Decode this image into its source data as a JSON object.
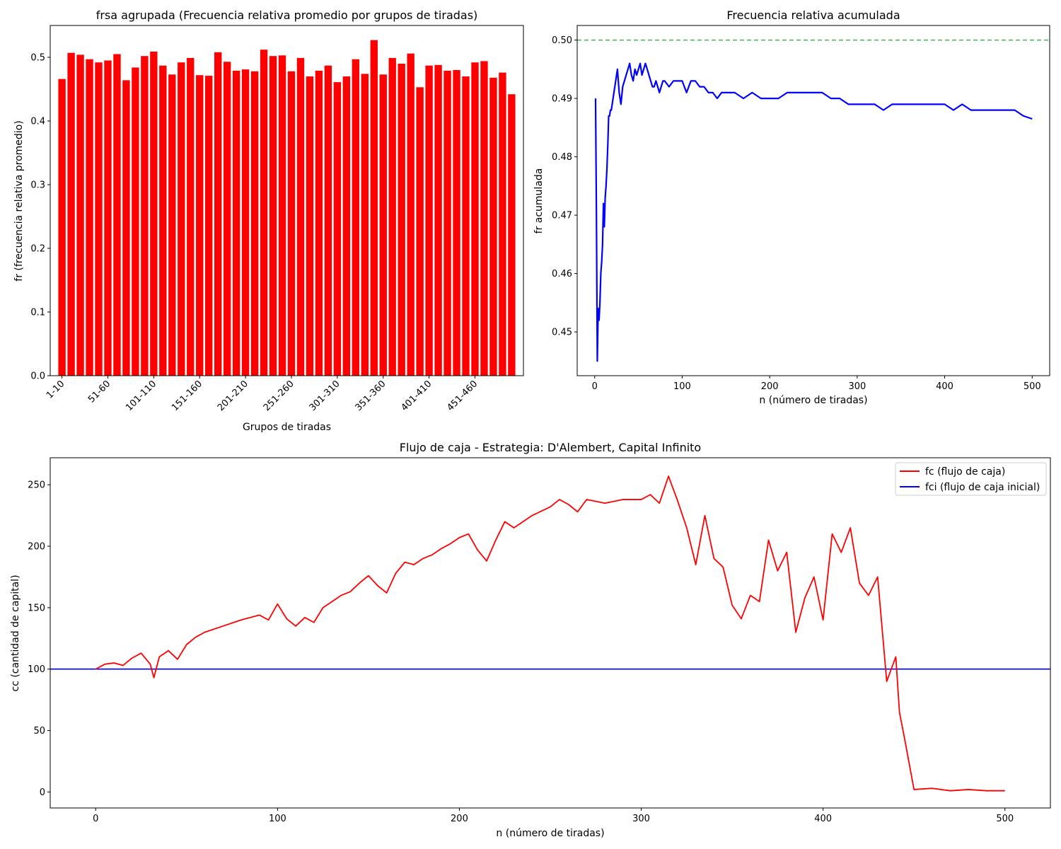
{
  "chart_data": [
    {
      "type": "bar",
      "title": "frsa agrupada (Frecuencia relativa promedio por grupos de tiradas)",
      "xlabel": "Grupos de tiradas",
      "ylabel": "fr (frecuencia relativa promedio)",
      "ylim": [
        0,
        0.55
      ],
      "yticks": [
        "0.0",
        "0.1",
        "0.2",
        "0.3",
        "0.4",
        "0.5"
      ],
      "tick_labels": [
        "1-10",
        "51-60",
        "101-110",
        "151-160",
        "201-210",
        "251-260",
        "301-310",
        "351-360",
        "401-410",
        "451-460"
      ],
      "tick_indices": [
        0,
        5,
        10,
        15,
        20,
        25,
        30,
        35,
        40,
        45
      ],
      "bar_color": "#ff0000",
      "categories": [
        "1-10",
        "11-20",
        "21-30",
        "31-40",
        "41-50",
        "51-60",
        "61-70",
        "71-80",
        "81-90",
        "91-100",
        "101-110",
        "111-120",
        "121-130",
        "131-140",
        "141-150",
        "151-160",
        "161-170",
        "171-180",
        "181-190",
        "191-200",
        "201-210",
        "211-220",
        "221-230",
        "231-240",
        "241-250",
        "251-260",
        "261-270",
        "271-280",
        "281-290",
        "291-300",
        "301-310",
        "311-320",
        "321-330",
        "331-340",
        "341-350",
        "351-360",
        "361-370",
        "371-380",
        "381-390",
        "391-400",
        "401-410",
        "411-420",
        "421-430",
        "431-440",
        "441-450",
        "451-460",
        "461-470",
        "471-480",
        "481-490",
        "491-500"
      ],
      "values": [
        0.466,
        0.507,
        0.504,
        0.497,
        0.492,
        0.495,
        0.505,
        0.464,
        0.484,
        0.502,
        0.509,
        0.487,
        0.473,
        0.492,
        0.499,
        0.472,
        0.471,
        0.508,
        0.493,
        0.479,
        0.481,
        0.478,
        0.512,
        0.502,
        0.503,
        0.478,
        0.499,
        0.47,
        0.479,
        0.487,
        0.461,
        0.47,
        0.497,
        0.474,
        0.527,
        0.473,
        0.499,
        0.49,
        0.506,
        0.453,
        0.487,
        0.488,
        0.479,
        0.48,
        0.47,
        0.492,
        0.494,
        0.468,
        0.476,
        0.442
      ]
    },
    {
      "type": "line",
      "title": "Frecuencia relativa acumulada",
      "xlabel": "n (número de tiradas)",
      "ylabel": "fr acumulada",
      "xlim": [
        -20,
        520
      ],
      "ylim": [
        0.4425,
        0.5025
      ],
      "xticks": [
        "0",
        "100",
        "200",
        "300",
        "400",
        "500"
      ],
      "yticks": [
        "0.45",
        "0.46",
        "0.47",
        "0.48",
        "0.49",
        "0.50"
      ],
      "reference_line": {
        "y": 0.5,
        "color": "#4caf50",
        "style": "dashed"
      },
      "series": [
        {
          "color": "#0000ff",
          "x": [
            1,
            2,
            3,
            4,
            5,
            6,
            7,
            8,
            9,
            10,
            11,
            12,
            13,
            14,
            15,
            16,
            17,
            18,
            19,
            20,
            22,
            24,
            26,
            28,
            30,
            32,
            34,
            36,
            38,
            40,
            42,
            44,
            46,
            48,
            50,
            52,
            54,
            56,
            58,
            60,
            62,
            64,
            66,
            68,
            70,
            72,
            74,
            76,
            78,
            80,
            85,
            90,
            95,
            100,
            105,
            110,
            115,
            120,
            125,
            130,
            135,
            140,
            145,
            150,
            160,
            170,
            180,
            190,
            200,
            210,
            220,
            230,
            240,
            250,
            260,
            270,
            280,
            290,
            300,
            310,
            320,
            330,
            340,
            350,
            360,
            370,
            380,
            390,
            400,
            410,
            420,
            430,
            440,
            450,
            460,
            470,
            480,
            490,
            500
          ],
          "y": [
            0.49,
            0.47,
            0.445,
            0.454,
            0.452,
            0.455,
            0.46,
            0.462,
            0.465,
            0.472,
            0.468,
            0.473,
            0.475,
            0.478,
            0.482,
            0.487,
            0.487,
            0.488,
            0.488,
            0.489,
            0.491,
            0.493,
            0.495,
            0.491,
            0.489,
            0.492,
            0.493,
            0.494,
            0.495,
            0.496,
            0.494,
            0.493,
            0.495,
            0.494,
            0.495,
            0.496,
            0.494,
            0.495,
            0.496,
            0.495,
            0.494,
            0.493,
            0.492,
            0.492,
            0.493,
            0.492,
            0.491,
            0.492,
            0.493,
            0.493,
            0.492,
            0.493,
            0.493,
            0.493,
            0.491,
            0.493,
            0.493,
            0.492,
            0.492,
            0.491,
            0.491,
            0.49,
            0.491,
            0.491,
            0.491,
            0.49,
            0.491,
            0.49,
            0.49,
            0.49,
            0.491,
            0.491,
            0.491,
            0.491,
            0.491,
            0.49,
            0.49,
            0.489,
            0.489,
            0.489,
            0.489,
            0.488,
            0.489,
            0.489,
            0.489,
            0.489,
            0.489,
            0.489,
            0.489,
            0.488,
            0.489,
            0.488,
            0.488,
            0.488,
            0.488,
            0.488,
            0.488,
            0.487,
            0.4865
          ]
        }
      ]
    },
    {
      "type": "line",
      "title": "Flujo de caja - Estrategia: D'Alembert, Capital Infinito",
      "xlabel": "n (número de tiradas)",
      "ylabel": "cc (cantidad de capital)",
      "xlim": [
        -25,
        525
      ],
      "ylim": [
        -13,
        272
      ],
      "xticks": [
        "0",
        "100",
        "200",
        "300",
        "400",
        "500"
      ],
      "yticks": [
        "0",
        "50",
        "100",
        "150",
        "200",
        "250"
      ],
      "legend_position": "top-right",
      "series": [
        {
          "name": "fc (flujo de caja)",
          "color": "#ff0000",
          "x": [
            0,
            5,
            10,
            15,
            20,
            25,
            30,
            32,
            35,
            40,
            45,
            50,
            55,
            60,
            70,
            80,
            90,
            95,
            100,
            105,
            110,
            115,
            120,
            125,
            130,
            135,
            140,
            145,
            150,
            155,
            160,
            165,
            170,
            175,
            180,
            185,
            190,
            195,
            200,
            205,
            210,
            215,
            220,
            225,
            230,
            240,
            250,
            255,
            260,
            265,
            270,
            280,
            290,
            300,
            305,
            310,
            315,
            320,
            325,
            330,
            335,
            340,
            345,
            350,
            355,
            360,
            365,
            370,
            375,
            380,
            385,
            390,
            395,
            400,
            405,
            410,
            415,
            420,
            425,
            430,
            435,
            440,
            442,
            445,
            450,
            460,
            470,
            480,
            490,
            500
          ],
          "y": [
            100,
            104,
            105,
            103,
            109,
            113,
            104,
            93,
            110,
            115,
            108,
            120,
            126,
            130,
            135,
            140,
            144,
            140,
            153,
            141,
            135,
            142,
            138,
            150,
            155,
            160,
            163,
            170,
            176,
            168,
            162,
            178,
            187,
            185,
            190,
            193,
            198,
            202,
            207,
            210,
            197,
            188,
            205,
            220,
            215,
            225,
            232,
            238,
            234,
            228,
            238,
            235,
            238,
            238,
            242,
            235,
            257,
            237,
            215,
            185,
            225,
            190,
            183,
            152,
            141,
            160,
            155,
            205,
            180,
            195,
            130,
            158,
            175,
            140,
            210,
            195,
            215,
            170,
            160,
            175,
            90,
            110,
            65,
            42,
            2,
            3,
            1,
            2,
            1,
            1
          ]
        },
        {
          "name": "fci (flujo de caja inicial)",
          "color": "#0000ff",
          "y_constant": 100
        }
      ]
    }
  ]
}
